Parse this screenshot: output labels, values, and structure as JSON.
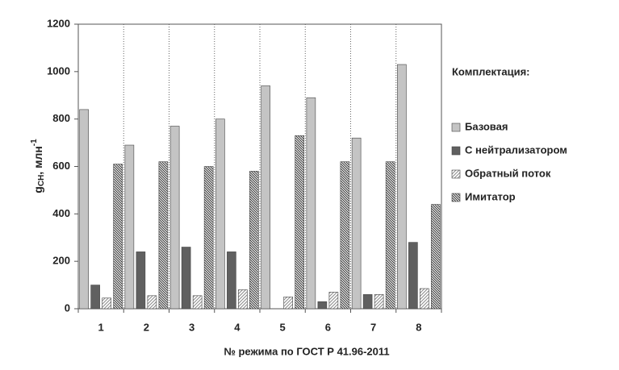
{
  "chart_data": {
    "type": "bar",
    "y_label": {
      "main": "g",
      "sub": "CH",
      "text": ", млн",
      "sup": "-1"
    },
    "x_label": "№ режима по ГОСТ Р 41.96-2011",
    "legend_title": "Комплектация:",
    "legend_position": "right",
    "categories": [
      "1",
      "2",
      "3",
      "4",
      "5",
      "6",
      "7",
      "8"
    ],
    "series": [
      {
        "name": "Базовая",
        "color": "#c4c4c4",
        "pattern": "solid",
        "values": [
          840,
          690,
          770,
          800,
          940,
          890,
          720,
          1030
        ]
      },
      {
        "name": "С нейтрализатором",
        "color": "#606060",
        "pattern": "solid",
        "values": [
          100,
          240,
          260,
          240,
          0,
          30,
          60,
          280
        ]
      },
      {
        "name": "Обратный поток",
        "color": "#8a8a8a",
        "pattern": "hatch-right",
        "values": [
          45,
          55,
          55,
          80,
          50,
          70,
          60,
          85
        ]
      },
      {
        "name": "Имитатор",
        "color": "#303030",
        "pattern": "hatch-left",
        "values": [
          610,
          620,
          600,
          580,
          730,
          620,
          620,
          440
        ]
      }
    ],
    "ylim": [
      0,
      1200
    ],
    "yticks": [
      0,
      200,
      400,
      600,
      800,
      1000,
      1200
    ],
    "category_separators": true
  }
}
